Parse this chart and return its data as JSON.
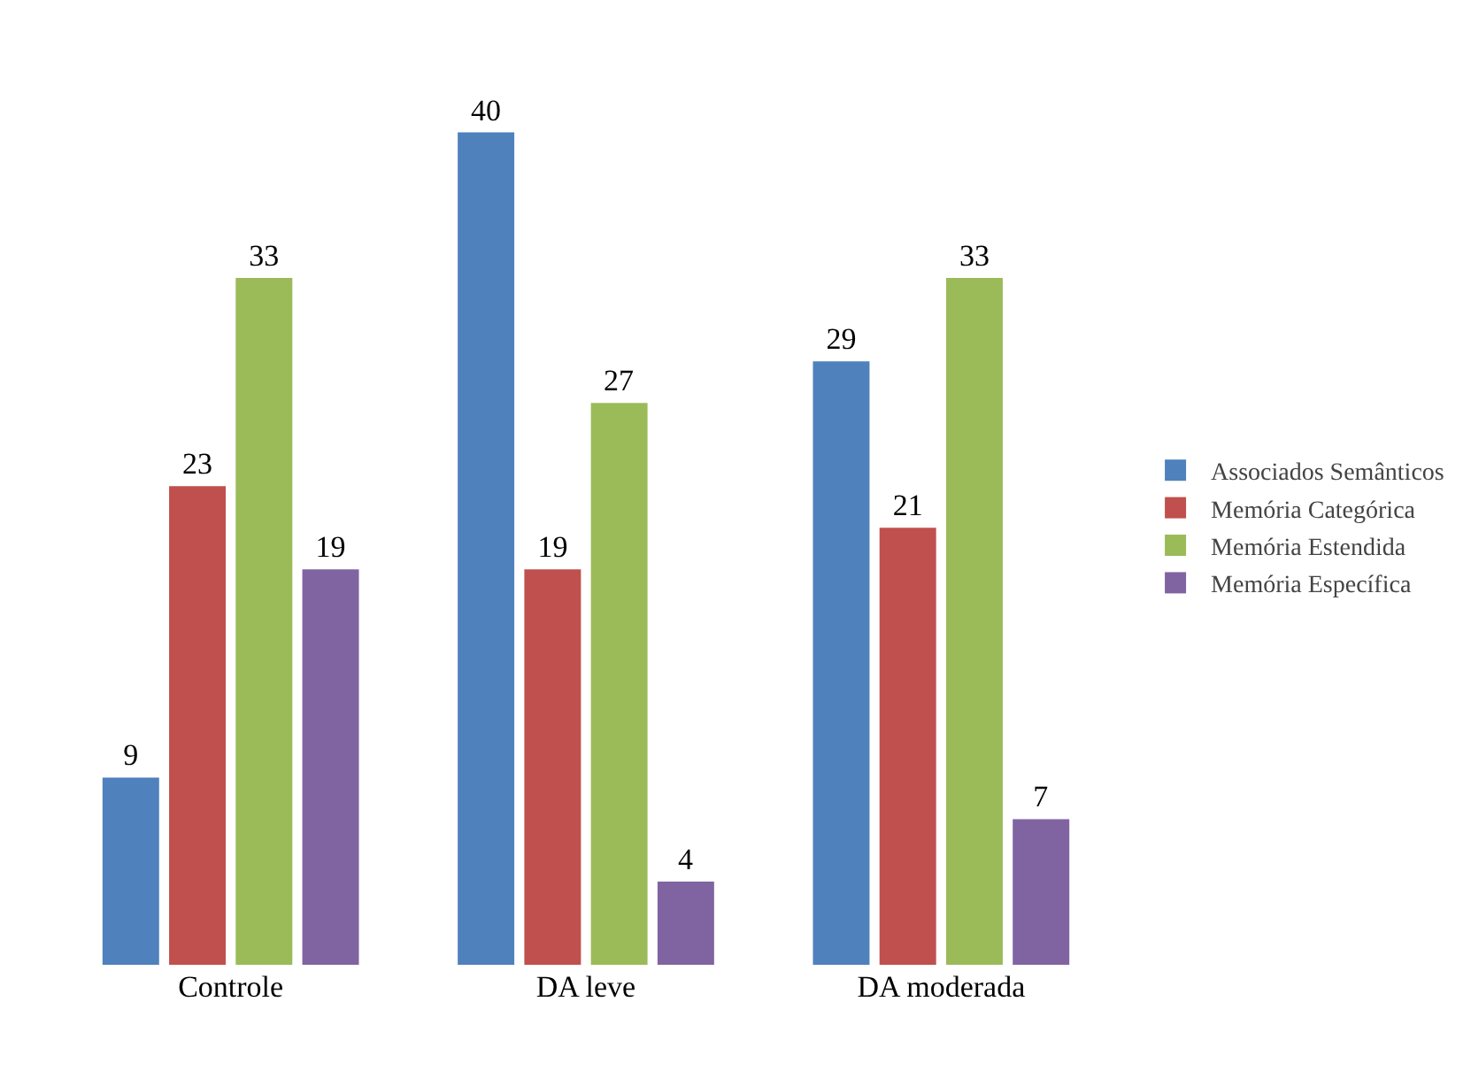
{
  "chart_data": {
    "type": "bar",
    "categories": [
      "Controle",
      "DA leve",
      "DA moderada"
    ],
    "series": [
      {
        "name": "Associados Semânticos",
        "color": "#4f81bd",
        "values": [
          9,
          40,
          29
        ]
      },
      {
        "name": "Memória Categórica",
        "color": "#c0504d",
        "values": [
          23,
          19,
          21
        ]
      },
      {
        "name": "Memória Estendida",
        "color": "#9bbb59",
        "values": [
          33,
          27,
          33
        ]
      },
      {
        "name": "Memória Específica",
        "color": "#8064a2",
        "values": [
          19,
          4,
          7
        ]
      }
    ],
    "data_labels": true,
    "legend": "right",
    "grid": false
  }
}
